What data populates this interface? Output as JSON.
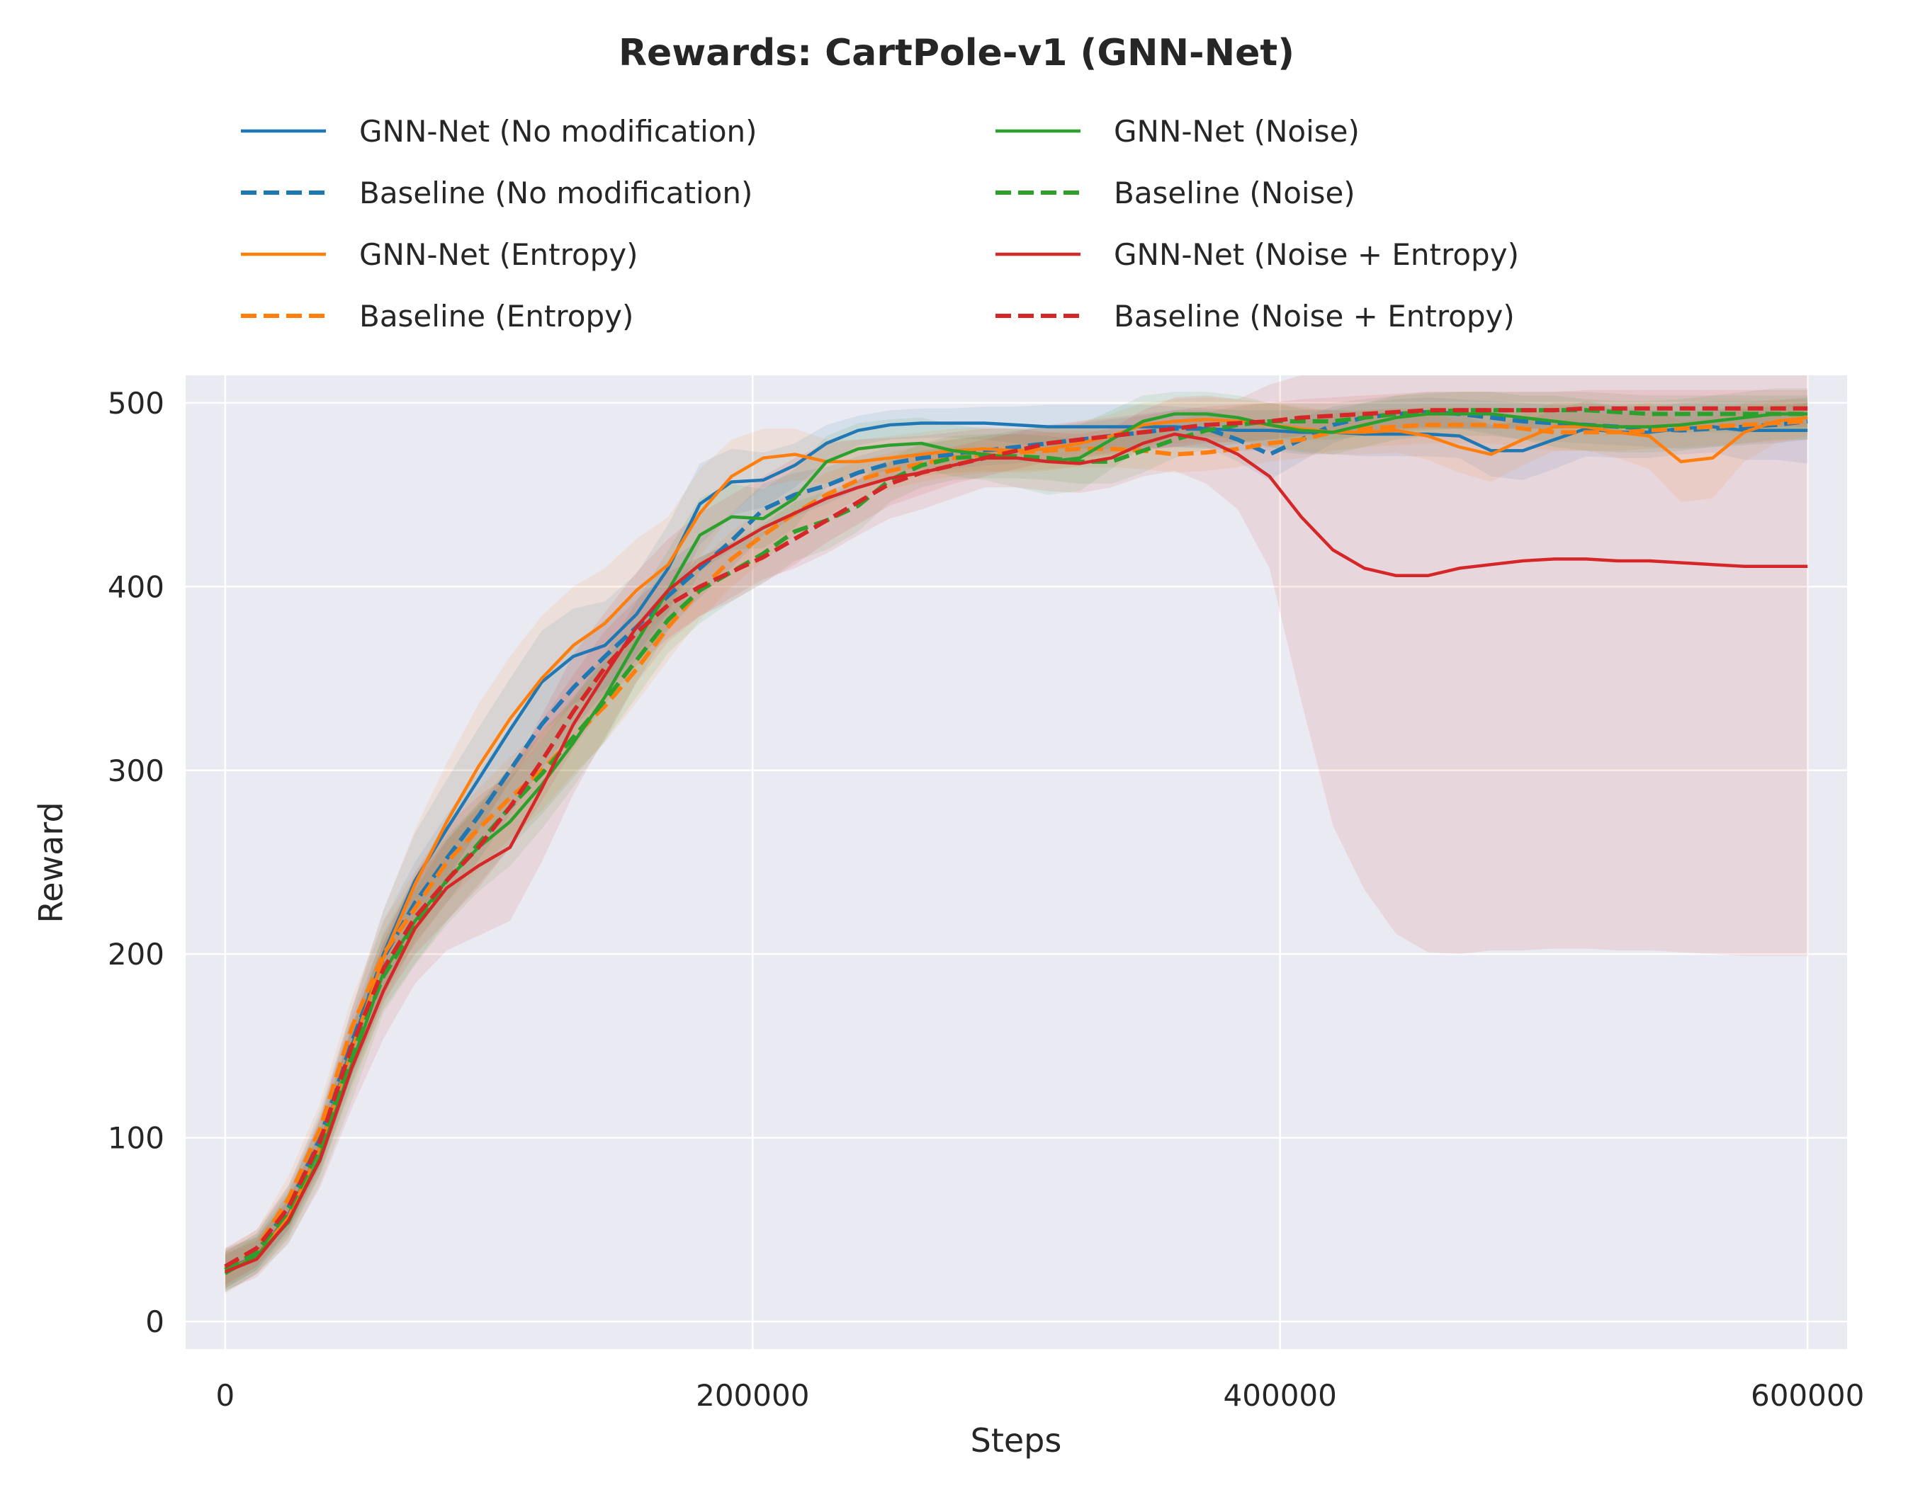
{
  "chart_data": {
    "type": "line",
    "title": "Rewards: CartPole-v1 (GNN-Net)",
    "xlabel": "Steps",
    "ylabel": "Reward",
    "xlim": [
      -15000,
      615000
    ],
    "ylim": [
      -15,
      515
    ],
    "xticks": [
      0,
      200000,
      400000,
      600000
    ],
    "xtick_labels": [
      "0",
      "200000",
      "400000",
      "600000"
    ],
    "yticks": [
      0,
      100,
      200,
      300,
      400,
      500
    ],
    "ytick_labels": [
      "0",
      "100",
      "200",
      "300",
      "400",
      "500"
    ],
    "grid": true,
    "background": "#eaeaf2",
    "legend_position": "above plot, two columns",
    "x": [
      0,
      12000,
      24000,
      36000,
      48000,
      60000,
      72000,
      84000,
      96000,
      108000,
      120000,
      132000,
      144000,
      156000,
      168000,
      180000,
      192000,
      204000,
      216000,
      228000,
      240000,
      252000,
      264000,
      276000,
      288000,
      300000,
      312000,
      324000,
      336000,
      348000,
      360000,
      372000,
      384000,
      396000,
      408000,
      420000,
      432000,
      444000,
      456000,
      468000,
      480000,
      492000,
      504000,
      516000,
      528000,
      540000,
      552000,
      564000,
      576000,
      588000,
      600000
    ],
    "series": [
      {
        "name": "GNN-Net (No modification)",
        "color": "#1f77b4",
        "style": "solid",
        "values": [
          28,
          36,
          58,
          95,
          150,
          200,
          240,
          268,
          295,
          322,
          348,
          362,
          368,
          385,
          410,
          445,
          457,
          458,
          466,
          478,
          485,
          488,
          489,
          489,
          489,
          488,
          487,
          487,
          487,
          487,
          487,
          486,
          485,
          485,
          484,
          484,
          483,
          483,
          483,
          482,
          474,
          474,
          480,
          486,
          484,
          484,
          486,
          487,
          485,
          485,
          485
        ],
        "band": [
          12,
          10,
          12,
          15,
          20,
          24,
          26,
          27,
          28,
          28,
          28,
          26,
          24,
          22,
          24,
          22,
          18,
          15,
          12,
          10,
          8,
          8,
          8,
          8,
          9,
          10,
          12,
          12,
          12,
          12,
          11,
          11,
          11,
          11,
          12,
          12,
          12,
          12,
          12,
          12,
          14,
          16,
          16,
          15,
          14,
          14,
          14,
          14,
          16,
          16,
          18
        ]
      },
      {
        "name": "Baseline (No modification)",
        "color": "#1f77b4",
        "style": "dashed",
        "values": [
          28,
          38,
          62,
          100,
          152,
          198,
          228,
          252,
          275,
          300,
          325,
          345,
          362,
          378,
          395,
          410,
          425,
          442,
          450,
          455,
          462,
          467,
          470,
          472,
          474,
          476,
          478,
          480,
          482,
          484,
          486,
          486,
          480,
          472,
          480,
          488,
          492,
          494,
          495,
          494,
          492,
          490,
          489,
          488,
          487,
          486,
          485,
          486,
          487,
          488,
          490
        ],
        "band": [
          10,
          10,
          12,
          15,
          18,
          20,
          22,
          24,
          24,
          24,
          24,
          22,
          20,
          18,
          18,
          16,
          15,
          14,
          12,
          10,
          9,
          9,
          8,
          8,
          8,
          9,
          9,
          9,
          9,
          9,
          10,
          10,
          12,
          14,
          12,
          10,
          8,
          8,
          8,
          8,
          9,
          10,
          10,
          10,
          10,
          10,
          10,
          10,
          10,
          10,
          10
        ]
      },
      {
        "name": "GNN-Net (Entropy)",
        "color": "#ff7f0e",
        "style": "solid",
        "values": [
          27,
          36,
          57,
          95,
          148,
          198,
          238,
          272,
          302,
          328,
          350,
          368,
          380,
          398,
          412,
          440,
          460,
          470,
          472,
          468,
          468,
          470,
          472,
          474,
          475,
          474,
          475,
          478,
          482,
          488,
          490,
          491,
          490,
          488,
          486,
          484,
          484,
          485,
          482,
          476,
          472,
          480,
          487,
          487,
          484,
          482,
          468,
          470,
          484,
          490,
          492
        ],
        "band": [
          12,
          10,
          12,
          16,
          22,
          26,
          30,
          32,
          34,
          34,
          34,
          32,
          30,
          28,
          26,
          24,
          20,
          16,
          14,
          12,
          12,
          12,
          12,
          12,
          12,
          12,
          12,
          12,
          12,
          12,
          12,
          12,
          12,
          12,
          12,
          12,
          12,
          12,
          13,
          14,
          15,
          14,
          13,
          13,
          14,
          18,
          22,
          22,
          16,
          12,
          10
        ]
      },
      {
        "name": "Baseline (Entropy)",
        "color": "#ff7f0e",
        "style": "dashed",
        "values": [
          29,
          40,
          67,
          105,
          160,
          200,
          225,
          250,
          268,
          285,
          300,
          318,
          335,
          355,
          378,
          398,
          415,
          428,
          440,
          450,
          458,
          463,
          467,
          470,
          472,
          473,
          474,
          475,
          475,
          474,
          472,
          473,
          475,
          478,
          480,
          484,
          486,
          487,
          488,
          488,
          488,
          486,
          484,
          484,
          484,
          485,
          486,
          487,
          488,
          489,
          490
        ],
        "band": [
          10,
          10,
          12,
          14,
          16,
          18,
          20,
          22,
          22,
          22,
          22,
          20,
          20,
          18,
          18,
          16,
          15,
          14,
          12,
          12,
          10,
          10,
          10,
          10,
          10,
          10,
          10,
          10,
          10,
          10,
          10,
          10,
          10,
          10,
          10,
          10,
          10,
          10,
          10,
          10,
          10,
          10,
          10,
          10,
          10,
          10,
          10,
          10,
          10,
          10,
          10
        ]
      },
      {
        "name": "GNN-Net (Noise)",
        "color": "#2ca02c",
        "style": "solid",
        "values": [
          26,
          36,
          54,
          90,
          140,
          190,
          218,
          240,
          258,
          272,
          292,
          315,
          340,
          370,
          398,
          428,
          438,
          437,
          448,
          468,
          475,
          477,
          478,
          474,
          472,
          470,
          468,
          470,
          480,
          490,
          494,
          494,
          492,
          488,
          485,
          484,
          488,
          492,
          494,
          494,
          494,
          492,
          490,
          488,
          487,
          487,
          488,
          490,
          492,
          494,
          494
        ],
        "band": [
          10,
          10,
          12,
          15,
          20,
          22,
          24,
          24,
          24,
          24,
          24,
          24,
          24,
          22,
          22,
          20,
          18,
          16,
          16,
          14,
          14,
          14,
          14,
          14,
          14,
          16,
          18,
          18,
          16,
          14,
          12,
          12,
          12,
          12,
          12,
          12,
          12,
          12,
          12,
          12,
          12,
          12,
          14,
          14,
          14,
          14,
          14,
          14,
          14,
          14,
          14
        ]
      },
      {
        "name": "Baseline (Noise)",
        "color": "#2ca02c",
        "style": "dashed",
        "values": [
          28,
          38,
          60,
          95,
          145,
          188,
          215,
          240,
          260,
          280,
          298,
          318,
          338,
          360,
          382,
          398,
          408,
          418,
          430,
          436,
          444,
          458,
          466,
          470,
          471,
          471,
          470,
          468,
          468,
          474,
          480,
          485,
          488,
          490,
          490,
          490,
          492,
          494,
          495,
          496,
          496,
          496,
          496,
          496,
          495,
          494,
          494,
          494,
          494,
          494,
          494
        ],
        "band": [
          10,
          10,
          12,
          14,
          16,
          18,
          20,
          22,
          22,
          22,
          22,
          22,
          22,
          20,
          18,
          18,
          16,
          16,
          16,
          16,
          14,
          12,
          12,
          12,
          12,
          12,
          12,
          12,
          12,
          12,
          10,
          10,
          10,
          10,
          10,
          10,
          10,
          10,
          10,
          10,
          10,
          10,
          10,
          10,
          10,
          10,
          10,
          10,
          10,
          10,
          10
        ]
      },
      {
        "name": "GNN-Net (Noise + Entropy)",
        "color": "#d62728",
        "style": "solid",
        "values": [
          27,
          34,
          55,
          88,
          138,
          180,
          214,
          236,
          248,
          258,
          290,
          325,
          352,
          378,
          398,
          412,
          422,
          432,
          440,
          448,
          454,
          459,
          462,
          466,
          470,
          470,
          468,
          467,
          470,
          478,
          483,
          480,
          472,
          460,
          438,
          420,
          410,
          406,
          406,
          410,
          412,
          414,
          415,
          415,
          414,
          414,
          413,
          412,
          411,
          411,
          411
        ],
        "band": [
          10,
          10,
          12,
          15,
          22,
          26,
          30,
          34,
          38,
          40,
          40,
          38,
          34,
          30,
          28,
          28,
          28,
          28,
          30,
          30,
          26,
          22,
          20,
          18,
          16,
          16,
          16,
          16,
          16,
          18,
          20,
          24,
          30,
          50,
          100,
          150,
          175,
          195,
          205,
          210,
          210,
          212,
          212,
          212,
          212,
          212,
          212,
          212,
          212,
          212,
          212
        ]
      },
      {
        "name": "Baseline (Noise + Entropy)",
        "color": "#d62728",
        "style": "dashed",
        "values": [
          30,
          40,
          62,
          98,
          150,
          192,
          220,
          240,
          258,
          280,
          305,
          332,
          356,
          375,
          390,
          400,
          408,
          416,
          426,
          436,
          446,
          456,
          462,
          466,
          470,
          474,
          478,
          480,
          482,
          484,
          486,
          488,
          489,
          490,
          492,
          493,
          494,
          495,
          496,
          496,
          496,
          496,
          496,
          497,
          497,
          497,
          497,
          497,
          497,
          497,
          497
        ],
        "band": [
          10,
          10,
          12,
          14,
          16,
          18,
          20,
          22,
          22,
          22,
          22,
          20,
          20,
          18,
          18,
          16,
          16,
          14,
          14,
          12,
          12,
          12,
          12,
          10,
          10,
          10,
          10,
          10,
          10,
          10,
          10,
          10,
          10,
          10,
          10,
          10,
          10,
          10,
          10,
          10,
          10,
          10,
          10,
          10,
          10,
          10,
          10,
          10,
          10,
          10,
          10
        ]
      }
    ]
  }
}
